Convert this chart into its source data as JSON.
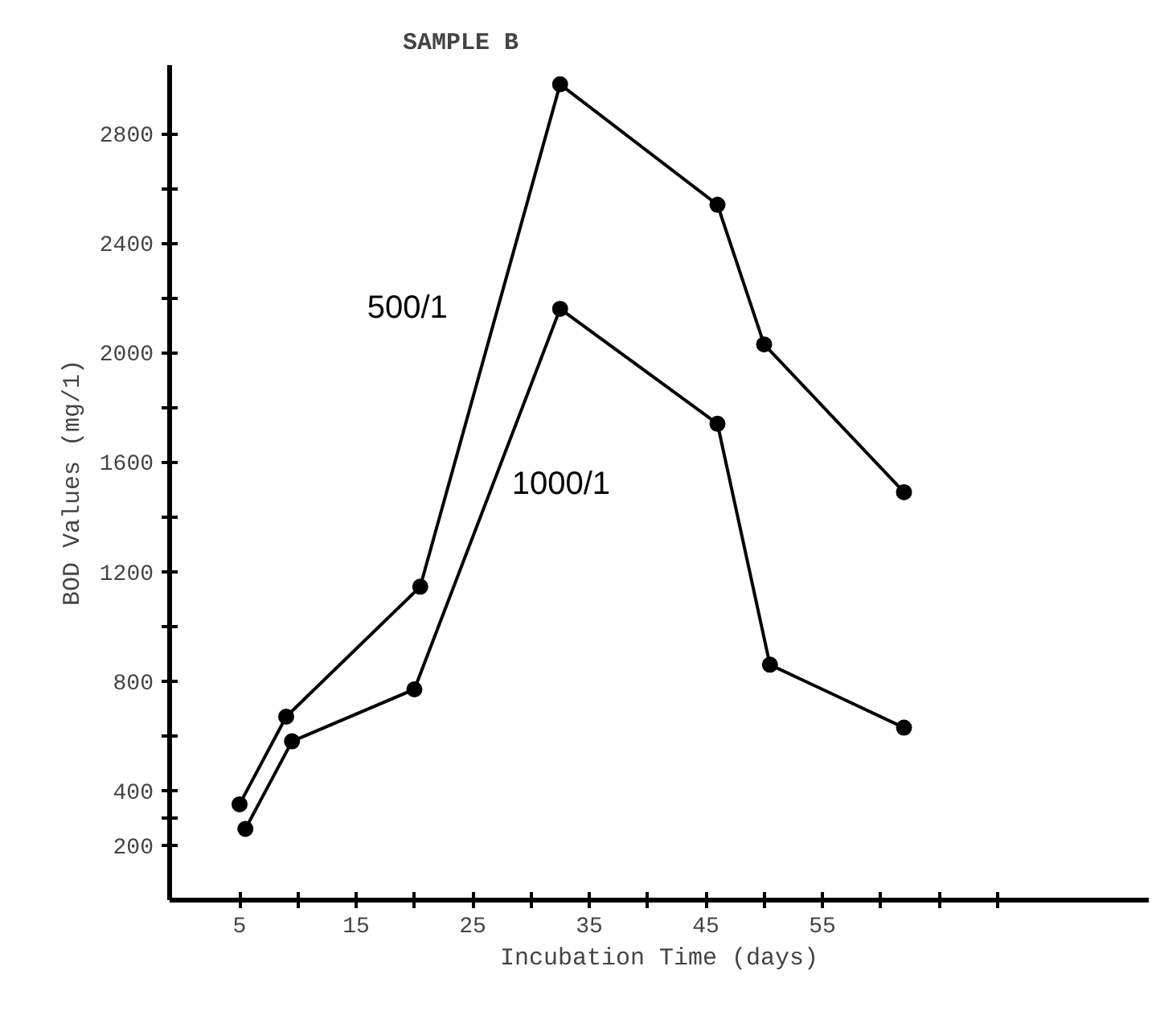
{
  "chart_data": {
    "type": "line",
    "title": "SAMPLE B",
    "xlabel": "Incubation Time (days)",
    "ylabel": "BOD Values (mg/1)",
    "series": [
      {
        "name": "500/1",
        "color": "#000000",
        "x": [
          5,
          9,
          20.5,
          32.5,
          46,
          50,
          62
        ],
        "values": [
          350,
          670,
          1145,
          2980,
          2540,
          2030,
          1490
        ]
      },
      {
        "name": "1000/1",
        "color": "#000000",
        "x": [
          5.5,
          9.5,
          20,
          32.5,
          46,
          50.5,
          62
        ],
        "values": [
          260,
          580,
          770,
          2160,
          1740,
          860,
          630
        ]
      }
    ],
    "xlim": [
      -1,
      83
    ],
    "ylim": [
      0,
      3050
    ],
    "xticks": [
      5,
      {
        "value": 10,
        "label": null
      },
      15,
      {
        "value": 20,
        "label": null
      },
      25,
      {
        "value": 30,
        "label": null
      },
      35,
      {
        "value": 40,
        "label": null
      },
      45,
      {
        "value": 50,
        "label": null
      },
      55,
      {
        "value": 60,
        "label": null
      },
      {
        "value": 65,
        "label": null
      },
      {
        "value": 70,
        "label": null
      }
    ],
    "yticks": [
      200,
      {
        "value": 300,
        "label": null
      },
      400,
      {
        "value": 600,
        "label": null
      },
      800,
      {
        "value": 1000,
        "label": null
      },
      1200,
      {
        "value": 1400,
        "label": null
      },
      1600,
      {
        "value": 1800,
        "label": null
      },
      2000,
      {
        "value": 2200,
        "label": null
      },
      2400,
      {
        "value": 2600,
        "label": null
      },
      2800
    ],
    "grid": false,
    "legend": false,
    "marker": "circle",
    "line_style": "solid"
  }
}
